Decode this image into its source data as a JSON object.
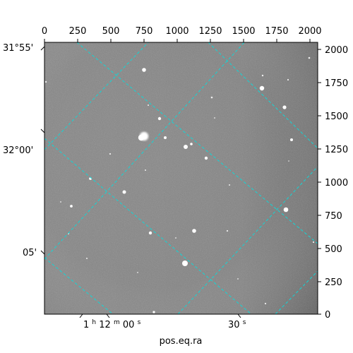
{
  "image": {
    "type": "astronomical-grayscale-frame",
    "colormap": "gray"
  },
  "axes": {
    "top_pixel_ticks": [
      "0",
      "250",
      "500",
      "750",
      "1000",
      "1250",
      "1500",
      "1750",
      "2000"
    ],
    "right_pixel_ticks": [
      "0",
      "250",
      "500",
      "750",
      "1000",
      "1250",
      "1500",
      "1750",
      "2000"
    ],
    "left_dec_ticks": [
      "31°55'",
      "32°00'",
      "05'"
    ],
    "bottom_ra_ticks": {
      "first_prefix": "1",
      "first_h": "h",
      "first_mid": "12",
      "first_m": "m",
      "first_sec": "00",
      "first_s": "s",
      "second_sec": "30",
      "second_s": "s"
    },
    "xlabel": "pos.eq.ra"
  },
  "colors": {
    "grid": "#12d6d6",
    "frame": "#000000"
  }
}
